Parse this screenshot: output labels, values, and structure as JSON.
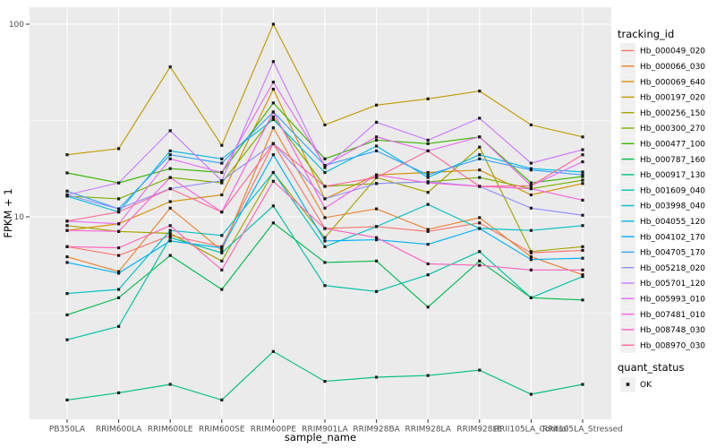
{
  "colors": {
    "panel_bg": "#EBEBEB",
    "grid": "#FFFFFF",
    "axis_text": "#4D4D4D",
    "tick_mark": "#333333",
    "legend_key_bg": "#F0F0F0",
    "point": "#1A1A1A"
  },
  "chart_data": {
    "type": "line",
    "title": "",
    "xlabel": "sample_name",
    "ylabel": "FPKM + 1",
    "y_scale": "log10",
    "grid": "on",
    "legend_position": "right",
    "ylim": [
      0.9,
      110
    ],
    "y_ticks": [
      10,
      100
    ],
    "y_tick_labels": [
      "10",
      "100"
    ],
    "y_minor_ticks": [
      3.162,
      31.623
    ],
    "categories": [
      "PB350LA",
      "RRIM600LA",
      "RRIM600LE",
      "RRIM600SE",
      "RRIM600PE",
      "RRIM901LA",
      "RRIM928BA",
      "RRIM928LA",
      "RRIM928LE",
      "RRII105LA_Control",
      "RRII105LA_Stressed"
    ],
    "series": [
      {
        "name": "Hb_000049_020",
        "color": "#F8766D",
        "values": [
          7.0,
          6.3,
          8.0,
          7.0,
          24,
          8.7,
          8.9,
          8.4,
          9.3,
          6.5,
          6.7
        ]
      },
      {
        "name": "Hb_000066_030",
        "color": "#EA8331",
        "values": [
          6.2,
          5.2,
          11.1,
          6.7,
          29,
          9.9,
          11.0,
          8.6,
          9.9,
          6.2,
          5.0
        ]
      },
      {
        "name": "Hb_000069_640",
        "color": "#D89000",
        "values": [
          8.5,
          9.2,
          12.0,
          13.0,
          46,
          12.4,
          16.5,
          17.0,
          17.5,
          13.0,
          14.9
        ]
      },
      {
        "name": "Hb_000197_020",
        "color": "#C09B00",
        "values": [
          21,
          22.6,
          60,
          23.5,
          100,
          30,
          38,
          41,
          45,
          30,
          26
        ]
      },
      {
        "name": "Hb_000256_150",
        "color": "#A3A500",
        "values": [
          9.0,
          8.4,
          8.2,
          5.9,
          17,
          7.8,
          16.0,
          13.4,
          23,
          6.6,
          7.0
        ]
      },
      {
        "name": "Hb_000300_270",
        "color": "#7CAE00",
        "values": [
          12.8,
          12.4,
          16.0,
          15.0,
          33,
          14.4,
          14.9,
          15.2,
          16.0,
          14.0,
          15.5
        ]
      },
      {
        "name": "Hb_000477_100",
        "color": "#39B600",
        "values": [
          16.9,
          15.0,
          17.8,
          17.0,
          39,
          20,
          25,
          24,
          26,
          15.0,
          16.2
        ]
      },
      {
        "name": "Hb_000787_160",
        "color": "#00BB4E",
        "values": [
          3.1,
          3.8,
          6.3,
          4.2,
          9.3,
          5.8,
          5.9,
          3.4,
          5.9,
          3.8,
          3.7
        ]
      },
      {
        "name": "Hb_000917_130",
        "color": "#00BF7D",
        "values": [
          1.12,
          1.22,
          1.35,
          1.12,
          2.0,
          1.4,
          1.47,
          1.5,
          1.6,
          1.2,
          1.35
        ]
      },
      {
        "name": "Hb_001609_040",
        "color": "#00C1A3",
        "values": [
          2.3,
          2.7,
          7.8,
          6.5,
          11.4,
          4.4,
          4.1,
          5.0,
          6.6,
          3.8,
          4.9
        ]
      },
      {
        "name": "Hb_003998_040",
        "color": "#00BFC4",
        "values": [
          4.0,
          4.2,
          8.5,
          8.0,
          17,
          7.0,
          8.9,
          11.6,
          8.7,
          8.5,
          9.0
        ]
      },
      {
        "name": "Hb_004055_120",
        "color": "#00BAE0",
        "values": [
          12.8,
          10.6,
          22,
          20,
          32,
          17,
          23.3,
          16.0,
          21,
          17.8,
          17.1
        ]
      },
      {
        "name": "Hb_004102_170",
        "color": "#00B0F6",
        "values": [
          5.8,
          5.1,
          7.5,
          6.9,
          21,
          7.5,
          7.6,
          7.2,
          8.7,
          6.0,
          6.1
        ]
      },
      {
        "name": "Hb_004705_170",
        "color": "#35A2FF",
        "values": [
          13.6,
          11.0,
          21,
          19,
          35,
          18.5,
          22,
          16.5,
          20,
          17.5,
          16.5
        ]
      },
      {
        "name": "Hb_005218_020",
        "color": "#9590FF",
        "values": [
          13.0,
          11.0,
          14.0,
          15.4,
          24,
          12.4,
          14.9,
          15.2,
          14.4,
          11.1,
          10.2
        ]
      },
      {
        "name": "Hb_005701_120",
        "color": "#C77CFF",
        "values": [
          13.0,
          15.0,
          28,
          15.4,
          64,
          18.0,
          31,
          25,
          32.5,
          19.0,
          22.3
        ]
      },
      {
        "name": "Hb_005993_010",
        "color": "#E76BF3",
        "values": [
          9.5,
          9.2,
          20,
          17.0,
          50,
          18.5,
          26,
          22,
          26,
          14.5,
          19.3
        ]
      },
      {
        "name": "Hb_007481_010",
        "color": "#FA62DB",
        "values": [
          8.5,
          8.4,
          16.0,
          10.6,
          35,
          11.1,
          16.5,
          15.0,
          14.4,
          14.0,
          12.2
        ]
      },
      {
        "name": "Hb_008748_030",
        "color": "#FF62BC",
        "values": [
          7.0,
          6.9,
          9.0,
          5.3,
          15.3,
          8.7,
          7.8,
          5.7,
          5.6,
          5.3,
          5.3
        ]
      },
      {
        "name": "Hb_008970_030",
        "color": "#FF6A98",
        "values": [
          9.5,
          10.6,
          14.0,
          10.6,
          24,
          14.4,
          16.0,
          22,
          14.4,
          14.5,
          21
        ]
      }
    ],
    "legend": {
      "series_legend_title": "tracking_id",
      "quant_legend_title": "quant_status",
      "quant_items": [
        {
          "label": "OK",
          "shape": "filled-square"
        }
      ]
    },
    "point_shape": "filled-square"
  }
}
